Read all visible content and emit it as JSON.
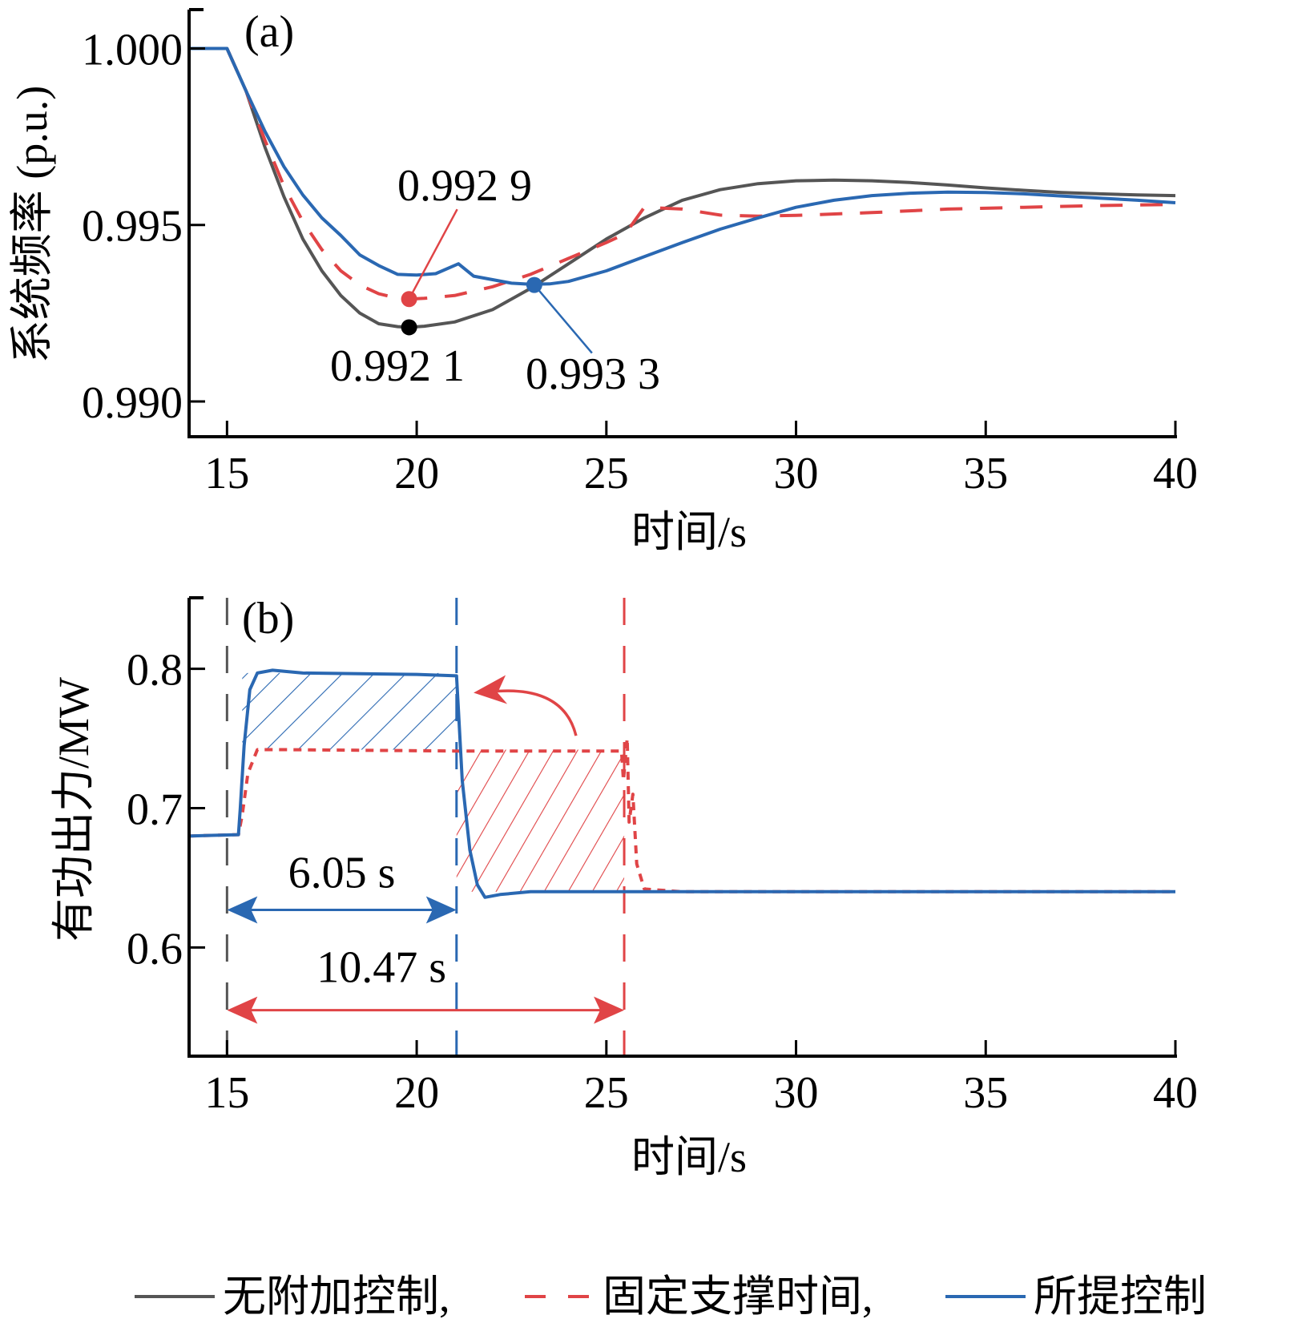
{
  "colors": {
    "no_control": "#555555",
    "fixed_support": "#e04446",
    "proposed": "#2a68b2",
    "axis": "#000000",
    "marker_black": "#000000"
  },
  "legend": {
    "placement": "bottom",
    "items": [
      {
        "label": "无附加控制,",
        "style": "solid",
        "color": "#555555"
      },
      {
        "label": "固定支撑时间,",
        "style": "dashed",
        "color": "#e04446"
      },
      {
        "label": "所提控制",
        "style": "solid",
        "color": "#2a68b2"
      }
    ]
  },
  "chart_data": [
    {
      "type": "line",
      "panel_label": "(a)",
      "title": "",
      "xlabel": "时间/s",
      "ylabel": "系统频率 (p.u.)",
      "xlim": [
        14,
        40
      ],
      "ylim": [
        0.989,
        1.0011
      ],
      "xticks": [
        15,
        20,
        25,
        30,
        35,
        40
      ],
      "xtick_labels": [
        "15",
        "20",
        "25",
        "30",
        "35",
        "40"
      ],
      "yticks": [
        0.99,
        0.995,
        1.0
      ],
      "ytick_labels": [
        "0.990",
        "0.995",
        "1.000"
      ],
      "grid": false,
      "series": [
        {
          "name": "无附加控制",
          "style": "solid",
          "x": [
            14,
            15,
            15.5,
            16,
            16.5,
            17,
            17.5,
            18,
            18.5,
            19,
            19.5,
            19.8,
            20.2,
            21,
            22,
            23,
            24,
            25,
            26,
            27,
            28,
            29,
            30,
            31,
            32,
            33,
            34,
            35,
            36,
            37,
            38,
            39,
            40
          ],
          "y": [
            1.0,
            1.0,
            0.9988,
            0.9972,
            0.9958,
            0.9946,
            0.9937,
            0.993,
            0.9925,
            0.9922,
            0.99212,
            0.9921,
            0.99213,
            0.99225,
            0.9926,
            0.9932,
            0.9939,
            0.9946,
            0.9952,
            0.9957,
            0.996,
            0.99617,
            0.99625,
            0.99627,
            0.99625,
            0.9962,
            0.99613,
            0.99605,
            0.99598,
            0.99592,
            0.99588,
            0.99585,
            0.99583
          ]
        },
        {
          "name": "固定支撑时间",
          "style": "dashed",
          "x": [
            14,
            15,
            15.5,
            16,
            16.5,
            17,
            17.5,
            18,
            18.5,
            19,
            19.5,
            19.8,
            20.2,
            21,
            22,
            23,
            24,
            25,
            25.5,
            26,
            27,
            28,
            29,
            30,
            32,
            34,
            36,
            38,
            40
          ],
          "y": [
            1.0,
            1.0,
            0.9988,
            0.9974,
            0.9961,
            0.9951,
            0.9943,
            0.9937,
            0.9933,
            0.99305,
            0.99292,
            0.9929,
            0.99292,
            0.993,
            0.99325,
            0.9936,
            0.99405,
            0.9945,
            0.99475,
            0.9955,
            0.99545,
            0.99528,
            0.99525,
            0.99527,
            0.99535,
            0.99545,
            0.9955,
            0.99555,
            0.99558
          ]
        },
        {
          "name": "所提控制",
          "style": "solid",
          "x": [
            14,
            15,
            15.5,
            16,
            16.5,
            17,
            17.5,
            18,
            18.5,
            19,
            19.5,
            20,
            20.5,
            21.1,
            21.5,
            22,
            22.5,
            23,
            23.5,
            24,
            25,
            26,
            27,
            28,
            29,
            30,
            31,
            32,
            33,
            34,
            35,
            36,
            37,
            38,
            39,
            40
          ],
          "y": [
            1.0,
            1.0,
            0.9988,
            0.99765,
            0.99665,
            0.99585,
            0.9952,
            0.9947,
            0.99415,
            0.99385,
            0.9936,
            0.99358,
            0.99362,
            0.9939,
            0.99355,
            0.99345,
            0.99335,
            0.99332,
            0.99333,
            0.9934,
            0.9937,
            0.9941,
            0.9945,
            0.99488,
            0.9952,
            0.9955,
            0.9957,
            0.99583,
            0.9959,
            0.99593,
            0.99592,
            0.99588,
            0.99582,
            0.99576,
            0.9957,
            0.99563
          ]
        }
      ],
      "annotations": [
        {
          "text": "0.992 9",
          "series": "固定支撑时间",
          "x": 19.8,
          "y": 0.9929
        },
        {
          "text": "0.992 1",
          "series": "无附加控制",
          "x": 19.8,
          "y": 0.9921
        },
        {
          "text": "0.993 3",
          "series": "所提控制",
          "x": 23.1,
          "y": 0.9933
        }
      ]
    },
    {
      "type": "line",
      "panel_label": "(b)",
      "title": "",
      "xlabel": "时间/s",
      "ylabel": "有功出力/MW",
      "xlim": [
        14,
        40
      ],
      "ylim": [
        0.522,
        0.851
      ],
      "xticks": [
        15,
        20,
        25,
        30,
        35,
        40
      ],
      "xtick_labels": [
        "15",
        "20",
        "25",
        "30",
        "35",
        "40"
      ],
      "yticks": [
        0.6,
        0.7,
        0.8
      ],
      "ytick_labels": [
        "0.6",
        "0.7",
        "0.8"
      ],
      "grid": false,
      "series": [
        {
          "name": "固定支撑时间",
          "style": "dotted",
          "x": [
            14,
            15.3,
            15.4,
            15.55,
            15.8,
            16.5,
            21,
            25.4,
            25.45,
            25.55,
            25.6,
            25.7,
            25.8,
            26,
            27,
            40
          ],
          "y": [
            0.68,
            0.681,
            0.695,
            0.725,
            0.742,
            0.742,
            0.741,
            0.741,
            0.72,
            0.75,
            0.69,
            0.71,
            0.66,
            0.642,
            0.64,
            0.64
          ]
        },
        {
          "name": "所提控制",
          "style": "solid",
          "x": [
            14,
            15.3,
            15.35,
            15.45,
            15.6,
            15.8,
            16.2,
            17,
            20,
            21.05,
            21.1,
            21.2,
            21.4,
            21.6,
            21.8,
            22.2,
            23,
            40
          ],
          "y": [
            0.68,
            0.681,
            0.7,
            0.745,
            0.785,
            0.797,
            0.799,
            0.797,
            0.796,
            0.795,
            0.77,
            0.72,
            0.67,
            0.645,
            0.636,
            0.638,
            0.64,
            0.64
          ]
        }
      ],
      "vlines": [
        {
          "x": 15.0,
          "color": "#555555",
          "style": "dashed"
        },
        {
          "x": 21.05,
          "color": "#2a68b2",
          "style": "dashed"
        },
        {
          "x": 25.47,
          "color": "#e04446",
          "style": "dashed"
        }
      ],
      "shaded_regions": [
        {
          "series": "所提控制",
          "x": [
            15.4,
            21.05
          ],
          "y_low": 0.742,
          "y_high": 0.797,
          "hatch": "diagonal",
          "color": "#2a68b2"
        },
        {
          "series": "固定支撑时间",
          "x": [
            21.05,
            25.47
          ],
          "y_low": 0.64,
          "y_high": 0.742,
          "hatch": "diagonal",
          "color": "#e04446"
        }
      ],
      "spans": [
        {
          "label": "6.05 s",
          "x_start": 15.0,
          "x_end": 21.05,
          "y": 0.627,
          "color": "#2a68b2"
        },
        {
          "label": "10.47 s",
          "x_start": 15.0,
          "x_end": 25.47,
          "y": 0.555,
          "color": "#e04446"
        }
      ],
      "arrow_annotation": {
        "from_x": 24.2,
        "from_y": 0.752,
        "to_x": 21.5,
        "to_y": 0.784,
        "color": "#e04446"
      }
    }
  ]
}
